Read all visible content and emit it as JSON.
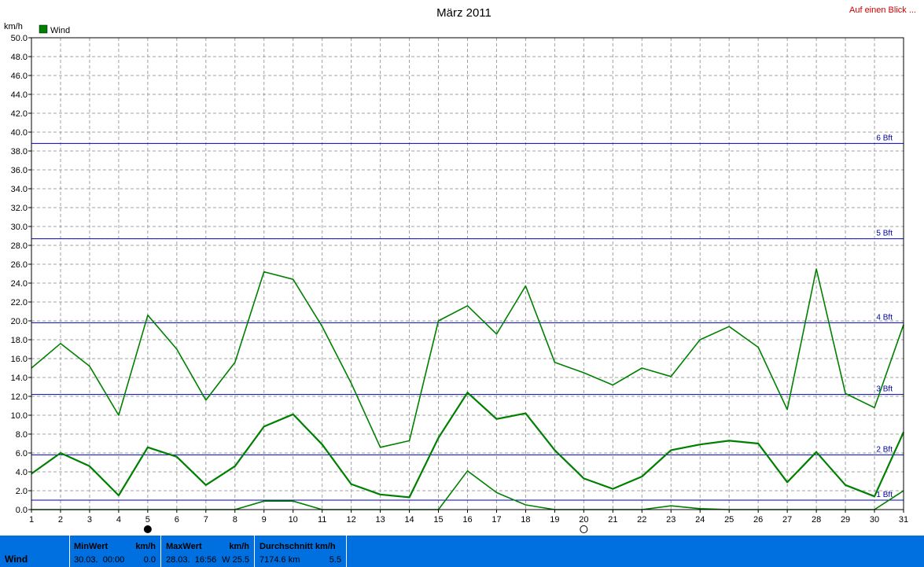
{
  "header": {
    "title": "März 2011",
    "link_label": "Auf einen Blick ..."
  },
  "chart_data": {
    "type": "line",
    "title": "März 2011",
    "ylabel": "km/h",
    "legend": {
      "label": "Wind",
      "placement": "top-left",
      "color": "#008000"
    },
    "ylim": [
      0,
      50
    ],
    "y_ticks": [
      "0.0",
      "2.0",
      "4.0",
      "6.0",
      "8.0",
      "10.0",
      "12.0",
      "14.0",
      "16.0",
      "18.0",
      "20.0",
      "22.0",
      "24.0",
      "26.0",
      "28.0",
      "30.0",
      "32.0",
      "34.0",
      "36.0",
      "38.0",
      "40.0",
      "42.0",
      "44.0",
      "46.0",
      "48.0",
      "50.0"
    ],
    "x": [
      1,
      2,
      3,
      4,
      5,
      6,
      7,
      8,
      9,
      10,
      11,
      12,
      13,
      14,
      15,
      16,
      17,
      18,
      19,
      20,
      21,
      22,
      23,
      24,
      25,
      26,
      27,
      28,
      29,
      30,
      31
    ],
    "x_ticks": [
      "1",
      "2",
      "3",
      "4",
      "5",
      "6",
      "7",
      "8",
      "9",
      "10",
      "11",
      "12",
      "13",
      "14",
      "15",
      "16",
      "17",
      "18",
      "19",
      "20",
      "21",
      "22",
      "23",
      "24",
      "25",
      "26",
      "27",
      "28",
      "29",
      "30",
      "31"
    ],
    "grid": true,
    "series": [
      {
        "role": "max",
        "color": "#008000",
        "values": [
          15.0,
          17.6,
          15.2,
          10.0,
          20.6,
          17.0,
          11.6,
          15.6,
          25.2,
          24.4,
          19.4,
          13.4,
          6.6,
          7.3,
          20.0,
          21.6,
          18.6,
          23.7,
          15.6,
          14.5,
          13.2,
          15.0,
          14.1,
          18.0,
          19.4,
          17.2,
          10.6,
          25.5,
          12.3,
          10.8,
          19.6
        ]
      },
      {
        "role": "avg",
        "color": "#008000",
        "values": [
          3.8,
          6.0,
          4.6,
          1.5,
          6.6,
          5.6,
          2.6,
          4.6,
          8.8,
          10.1,
          6.9,
          2.7,
          1.6,
          1.3,
          7.6,
          12.4,
          9.6,
          10.2,
          6.3,
          3.3,
          2.2,
          3.5,
          6.3,
          6.9,
          7.3,
          7.0,
          2.9,
          6.1,
          2.6,
          1.4,
          8.2
        ]
      },
      {
        "role": "min",
        "color": "#008000",
        "values": [
          0,
          0,
          0,
          0,
          0,
          0,
          0,
          0,
          0.9,
          0.9,
          0,
          0,
          0,
          0,
          0,
          4.1,
          1.8,
          0.5,
          0,
          0,
          0,
          0,
          0.4,
          0.1,
          0,
          0,
          0,
          0,
          0,
          0,
          2.0
        ]
      }
    ],
    "reference_lines": [
      {
        "label": "1 Bft",
        "value": 1.0,
        "color": "#0000c0"
      },
      {
        "label": "2 Bft",
        "value": 5.8,
        "color": "#0000c0"
      },
      {
        "label": "3 Bft",
        "value": 12.2,
        "color": "#0000c0"
      },
      {
        "label": "4 Bft",
        "value": 19.8,
        "color": "#0000c0"
      },
      {
        "label": "5 Bft",
        "value": 28.7,
        "color": "#0000c0"
      },
      {
        "label": "6 Bft",
        "value": 38.8,
        "color": "#0000c0"
      }
    ],
    "moon_markers": [
      {
        "day": 5,
        "icon": "new-moon-icon"
      },
      {
        "day": 20,
        "icon": "full-moon-icon"
      }
    ]
  },
  "footer": {
    "label": "Wind",
    "min": {
      "header": "MinWert",
      "unit": "km/h",
      "datetime": "30.03.  00:00",
      "value": "0.0"
    },
    "max": {
      "header": "MaxWert",
      "unit": "km/h",
      "datetime": "28.03.  16:56",
      "value": "W 25.5"
    },
    "avg": {
      "header": "Durchschnitt km/h",
      "distance": "7174.6 km",
      "value": "5.5"
    },
    "color": "#0070e0"
  }
}
